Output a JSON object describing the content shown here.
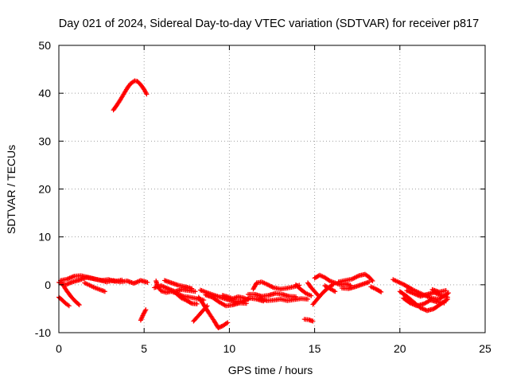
{
  "chart_data": {
    "type": "scatter",
    "title": "Day 021 of 2024, Sidereal Day-to-day VTEC variation (SDTVAR) for receiver p817",
    "xlabel": "GPS time / hours",
    "ylabel": "SDTVAR / TECUs",
    "xlim": [
      0,
      25
    ],
    "ylim": [
      -10,
      50
    ],
    "xticks": [
      0,
      5,
      10,
      15,
      20,
      25
    ],
    "yticks": [
      -10,
      0,
      10,
      20,
      30,
      40,
      50
    ],
    "grid": true,
    "marker": "plus",
    "color": "#ff0000",
    "series": [
      {
        "name": "p817",
        "tracks": [
          [
            [
              3.2,
              36.5
            ],
            [
              3.4,
              37.5
            ],
            [
              3.6,
              38.6
            ],
            [
              3.8,
              39.8
            ],
            [
              4.0,
              41.0
            ],
            [
              4.2,
              42.0
            ],
            [
              4.45,
              42.6
            ],
            [
              4.6,
              42.5
            ],
            [
              4.8,
              41.8
            ],
            [
              5.0,
              40.8
            ],
            [
              5.15,
              39.8
            ]
          ],
          [
            [
              0.0,
              0.5
            ],
            [
              0.4,
              0.0
            ],
            [
              0.8,
              0.6
            ],
            [
              1.2,
              1.0
            ],
            [
              1.6,
              1.5
            ],
            [
              2.0,
              1.3
            ],
            [
              2.4,
              1.0
            ],
            [
              2.8,
              0.6
            ],
            [
              3.2,
              0.9
            ],
            [
              3.6,
              0.6
            ],
            [
              4.0,
              0.8
            ],
            [
              4.4,
              0.3
            ],
            [
              4.8,
              0.9
            ],
            [
              5.2,
              0.5
            ]
          ],
          [
            [
              0.1,
              0.9
            ],
            [
              0.5,
              1.2
            ],
            [
              0.9,
              1.8
            ],
            [
              1.3,
              1.9
            ],
            [
              1.7,
              1.6
            ],
            [
              2.1,
              1.2
            ],
            [
              2.5,
              0.9
            ],
            [
              2.9,
              1.1
            ],
            [
              3.3,
              0.7
            ],
            [
              3.7,
              1.0
            ]
          ],
          [
            [
              1.5,
              0.4
            ],
            [
              1.8,
              -0.1
            ],
            [
              2.1,
              -0.6
            ],
            [
              2.4,
              -1.0
            ],
            [
              2.7,
              -1.4
            ]
          ],
          [
            [
              0.0,
              -2.6
            ],
            [
              0.2,
              -3.2
            ],
            [
              0.4,
              -3.9
            ],
            [
              0.6,
              -4.4
            ]
          ],
          [
            [
              0.2,
              0.2
            ],
            [
              0.45,
              -1.2
            ],
            [
              0.7,
              -2.4
            ],
            [
              0.95,
              -3.4
            ],
            [
              1.2,
              -4.2
            ]
          ],
          [
            [
              4.8,
              -7.4
            ],
            [
              4.95,
              -6.2
            ],
            [
              5.1,
              -5.2
            ]
          ],
          [
            [
              5.7,
              0.8
            ],
            [
              5.8,
              -0.4
            ],
            [
              6.0,
              -1.3
            ],
            [
              6.3,
              -1.6
            ],
            [
              6.6,
              -1.4
            ],
            [
              6.9,
              -1.8
            ],
            [
              7.3,
              -2.4
            ],
            [
              7.7,
              -2.6
            ],
            [
              8.1,
              -2.9
            ],
            [
              8.5,
              -3.2
            ]
          ],
          [
            [
              5.6,
              -0.6
            ],
            [
              6.0,
              -0.2
            ],
            [
              6.4,
              -0.8
            ],
            [
              6.8,
              -1.4
            ],
            [
              7.2,
              -1.0
            ],
            [
              7.6,
              -1.2
            ],
            [
              8.0,
              -1.4
            ]
          ],
          [
            [
              6.2,
              0.9
            ],
            [
              6.6,
              0.4
            ],
            [
              7.0,
              -0.1
            ],
            [
              7.4,
              -0.4
            ],
            [
              7.8,
              -0.8
            ]
          ],
          [
            [
              7.9,
              -7.6
            ],
            [
              8.1,
              -6.8
            ],
            [
              8.3,
              -6.0
            ],
            [
              8.5,
              -5.2
            ],
            [
              8.7,
              -4.4
            ]
          ],
          [
            [
              6.9,
              -1.9
            ],
            [
              7.2,
              -2.8
            ],
            [
              7.5,
              -3.3
            ],
            [
              7.8,
              -3.9
            ],
            [
              8.1,
              -4.0
            ]
          ],
          [
            [
              8.2,
              -2.6
            ],
            [
              8.5,
              -4.2
            ],
            [
              8.8,
              -5.9
            ],
            [
              9.1,
              -7.5
            ],
            [
              9.35,
              -9.0
            ],
            [
              9.6,
              -8.6
            ],
            [
              9.9,
              -7.9
            ]
          ],
          [
            [
              8.3,
              -1.1
            ],
            [
              8.8,
              -1.8
            ],
            [
              9.3,
              -2.4
            ],
            [
              9.8,
              -3.0
            ],
            [
              10.3,
              -3.5
            ],
            [
              10.8,
              -3.4
            ],
            [
              11.2,
              -2.8
            ],
            [
              11.6,
              -3.0
            ],
            [
              12.0,
              -3.4
            ]
          ],
          [
            [
              8.6,
              -2.1
            ],
            [
              9.0,
              -2.6
            ],
            [
              9.4,
              -3.6
            ],
            [
              9.8,
              -4.4
            ],
            [
              10.2,
              -4.2
            ],
            [
              10.6,
              -3.8
            ],
            [
              11.0,
              -3.9
            ]
          ],
          [
            [
              9.6,
              -2.2
            ],
            [
              9.9,
              -2.5
            ],
            [
              10.2,
              -2.9
            ],
            [
              10.5,
              -2.5
            ],
            [
              10.8,
              -2.7
            ],
            [
              11.1,
              -3.1
            ]
          ],
          [
            [
              11.4,
              -0.9
            ],
            [
              11.6,
              0.4
            ],
            [
              11.9,
              0.6
            ],
            [
              12.2,
              0.1
            ],
            [
              12.6,
              -0.6
            ],
            [
              13.0,
              -0.9
            ],
            [
              13.4,
              -0.7
            ],
            [
              13.8,
              -0.4
            ],
            [
              14.1,
              -0.1
            ]
          ],
          [
            [
              11.1,
              -2.0
            ],
            [
              11.5,
              -2.0
            ],
            [
              11.9,
              -2.4
            ],
            [
              12.3,
              -2.2
            ],
            [
              12.7,
              -1.8
            ],
            [
              13.1,
              -2.0
            ],
            [
              13.5,
              -2.4
            ],
            [
              13.9,
              -2.5
            ]
          ],
          [
            [
              11.8,
              -2.9
            ],
            [
              12.2,
              -3.3
            ],
            [
              12.6,
              -3.2
            ],
            [
              13.0,
              -3.0
            ],
            [
              13.4,
              -3.3
            ],
            [
              13.8,
              -3.1
            ],
            [
              14.2,
              -2.9
            ],
            [
              14.6,
              -3.0
            ]
          ],
          [
            [
              13.9,
              0.0
            ],
            [
              14.2,
              -1.0
            ],
            [
              14.5,
              -1.8
            ],
            [
              14.8,
              -2.3
            ]
          ],
          [
            [
              14.4,
              -7.2
            ],
            [
              14.65,
              -7.3
            ],
            [
              14.9,
              -7.6
            ]
          ],
          [
            [
              14.9,
              -4.1
            ],
            [
              15.2,
              -2.8
            ],
            [
              15.5,
              -1.6
            ],
            [
              15.8,
              -0.6
            ],
            [
              16.1,
              0.1
            ]
          ],
          [
            [
              14.6,
              0.4
            ],
            [
              14.8,
              -0.6
            ],
            [
              15.0,
              -1.4
            ],
            [
              15.2,
              -2.2
            ]
          ],
          [
            [
              15.0,
              1.4
            ],
            [
              15.3,
              2.0
            ],
            [
              15.6,
              1.5
            ],
            [
              15.9,
              0.8
            ],
            [
              16.2,
              0.4
            ],
            [
              16.5,
              0.0
            ],
            [
              16.8,
              0.2
            ],
            [
              17.1,
              -0.1
            ]
          ],
          [
            [
              15.6,
              -0.2
            ],
            [
              15.8,
              -0.6
            ],
            [
              16.0,
              -1.0
            ],
            [
              16.2,
              -1.4
            ]
          ],
          [
            [
              16.4,
              0.6
            ],
            [
              16.8,
              0.9
            ],
            [
              17.2,
              1.2
            ],
            [
              17.6,
              1.9
            ],
            [
              17.95,
              2.2
            ],
            [
              18.2,
              1.6
            ],
            [
              18.4,
              0.8
            ]
          ],
          [
            [
              16.6,
              -0.7
            ],
            [
              17.0,
              -0.8
            ],
            [
              17.4,
              -0.4
            ],
            [
              17.8,
              0.1
            ],
            [
              18.2,
              0.6
            ]
          ],
          [
            [
              18.3,
              -0.4
            ],
            [
              18.6,
              -0.9
            ],
            [
              18.9,
              -1.5
            ]
          ],
          [
            [
              19.6,
              1.1
            ],
            [
              19.9,
              0.6
            ],
            [
              20.2,
              0.1
            ],
            [
              20.5,
              -0.5
            ],
            [
              20.8,
              -1.1
            ],
            [
              21.1,
              -1.6
            ],
            [
              21.4,
              -2.1
            ],
            [
              21.7,
              -2.6
            ],
            [
              22.0,
              -2.9
            ],
            [
              22.3,
              -3.0
            ],
            [
              22.6,
              -2.3
            ],
            [
              22.85,
              -1.7
            ]
          ],
          [
            [
              20.0,
              -1.4
            ],
            [
              20.4,
              -2.4
            ],
            [
              20.8,
              -3.6
            ],
            [
              21.2,
              -4.8
            ],
            [
              21.6,
              -5.4
            ],
            [
              22.0,
              -5.0
            ],
            [
              22.4,
              -4.0
            ],
            [
              22.8,
              -3.0
            ]
          ],
          [
            [
              20.2,
              -2.8
            ],
            [
              20.6,
              -3.8
            ],
            [
              21.0,
              -4.4
            ],
            [
              21.4,
              -4.0
            ],
            [
              21.8,
              -3.2
            ],
            [
              22.2,
              -3.6
            ],
            [
              22.6,
              -3.8
            ]
          ],
          [
            [
              20.4,
              -1.2
            ],
            [
              20.8,
              -1.8
            ],
            [
              21.2,
              -2.4
            ],
            [
              21.6,
              -2.0
            ],
            [
              22.0,
              -1.6
            ],
            [
              22.4,
              -2.2
            ],
            [
              22.8,
              -2.6
            ]
          ],
          [
            [
              21.9,
              -1.0
            ],
            [
              22.3,
              -1.5
            ],
            [
              22.7,
              -1.2
            ]
          ]
        ]
      }
    ]
  }
}
